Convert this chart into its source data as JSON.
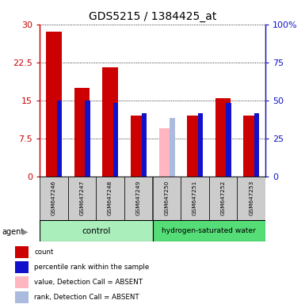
{
  "title": "GDS5215 / 1384425_at",
  "samples": [
    "GSM647246",
    "GSM647247",
    "GSM647248",
    "GSM647249",
    "GSM647250",
    "GSM647251",
    "GSM647252",
    "GSM647253"
  ],
  "red_values": [
    28.5,
    17.5,
    21.5,
    12.0,
    0,
    12.0,
    15.5,
    12.0
  ],
  "blue_values": [
    15.0,
    15.0,
    14.5,
    12.5,
    0,
    12.5,
    14.5,
    12.5
  ],
  "pink_values": [
    0,
    0,
    0,
    0,
    9.5,
    0,
    0,
    0
  ],
  "lblu_values": [
    0,
    0,
    0,
    0,
    11.5,
    0,
    0,
    0
  ],
  "absent": [
    false,
    false,
    false,
    false,
    true,
    false,
    false,
    false
  ],
  "ylim_left": [
    0,
    30
  ],
  "ylim_right": [
    0,
    100
  ],
  "yticks_left": [
    0,
    7.5,
    15,
    22.5,
    30
  ],
  "yticks_right": [
    0,
    25,
    50,
    75,
    100
  ],
  "ytlabels_left": [
    "0",
    "7.5",
    "15",
    "22.5",
    "30"
  ],
  "ytlabels_right": [
    "0",
    "25",
    "50",
    "75",
    "100%"
  ],
  "color_red": "#CC0000",
  "color_blue": "#1111CC",
  "color_pink": "#FFB6C1",
  "color_lblu": "#AABBDD",
  "color_gray": "#CCCCCC",
  "color_ctrl": "#AAEEBB",
  "color_h2": "#55DD77",
  "legend_labels": [
    "count",
    "percentile rank within the sample",
    "value, Detection Call = ABSENT",
    "rank, Detection Call = ABSENT"
  ],
  "legend_colors": [
    "#CC0000",
    "#1111CC",
    "#FFB6C1",
    "#AABBDD"
  ],
  "title_fontsize": 10,
  "tick_fontsize": 8,
  "label_fontsize": 6
}
